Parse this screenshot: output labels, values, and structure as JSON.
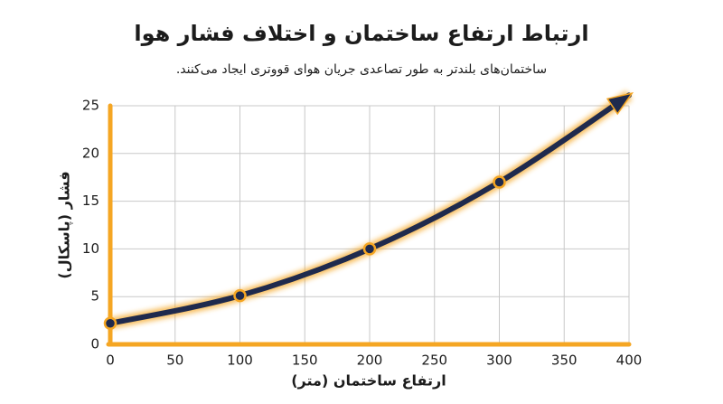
{
  "chart_data": {
    "type": "line",
    "title": "ارتباط ارتفاع ساختمان و اختلاف فشار هوا",
    "subtitle": "ساختمان‌های بلندتر به طور تصاعدی جریان هوای قووتری ایجاد می‌کنند.",
    "x_label": "ارتفاع ساختمان (متر)",
    "y_label": "فشار (پاسکال)",
    "x": [
      0,
      100,
      200,
      300
    ],
    "series": [
      {
        "name": "فشار",
        "color": "#1f2a4d",
        "values": [
          2.2,
          5.1,
          10,
          17
        ]
      }
    ],
    "xlim": [
      0,
      400
    ],
    "xticks": [
      0,
      50,
      100,
      150,
      200,
      250,
      300,
      350,
      400
    ],
    "ylim": [
      0,
      25
    ],
    "yticks": [
      0,
      5,
      10,
      15,
      20,
      25
    ],
    "grid": true,
    "axis_color": "#f5a623"
  }
}
